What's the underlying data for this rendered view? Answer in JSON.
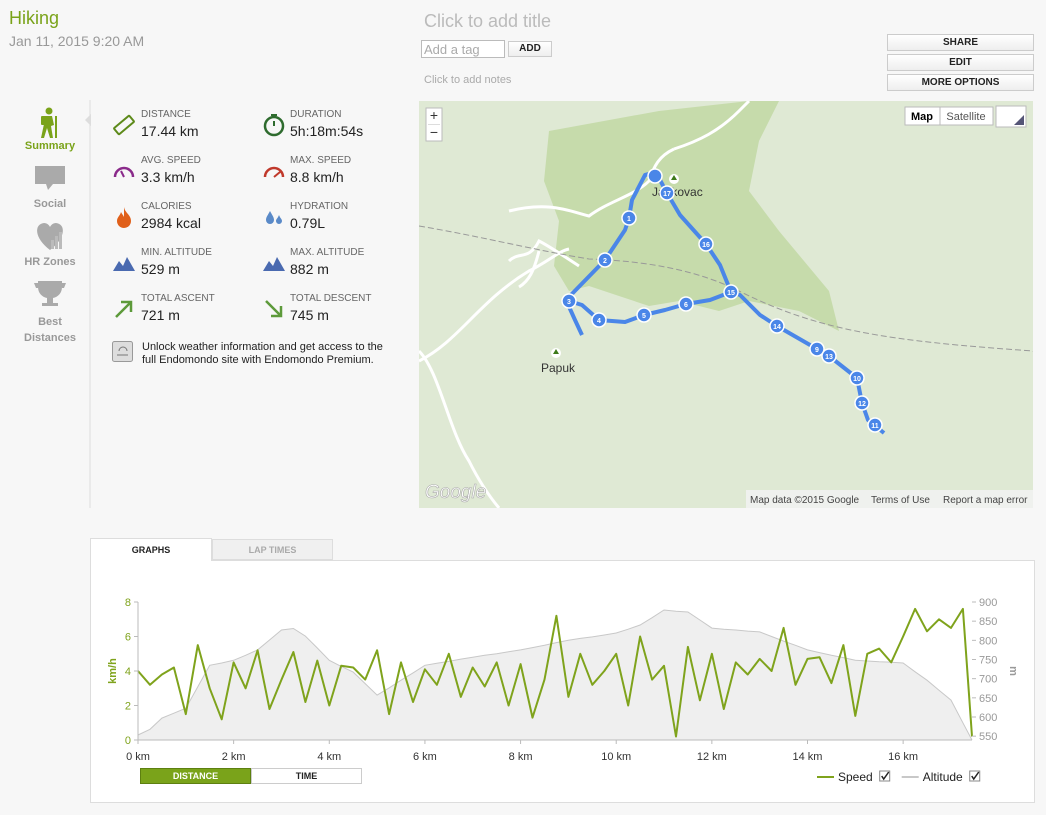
{
  "header": {
    "title": "Hiking",
    "date": "Jan 11, 2015 9:20 AM",
    "add_title": "Click to add title",
    "tag_placeholder": "Add a tag",
    "add_button": "ADD",
    "notes": "Click to add notes"
  },
  "actions": [
    "SHARE",
    "EDIT",
    "MORE OPTIONS"
  ],
  "sidebar": [
    "Summary",
    "Social",
    "HR Zones",
    "Best Distances"
  ],
  "stats": [
    {
      "label": "DISTANCE",
      "value": "17.44 km"
    },
    {
      "label": "DURATION",
      "value": "5h:18m:54s"
    },
    {
      "label": "AVG. SPEED",
      "value": "3.3 km/h"
    },
    {
      "label": "MAX. SPEED",
      "value": "8.8 km/h"
    },
    {
      "label": "CALORIES",
      "value": "2984 kcal"
    },
    {
      "label": "HYDRATION",
      "value": "0.79L"
    },
    {
      "label": "MIN. ALTITUDE",
      "value": "529 m"
    },
    {
      "label": "MAX. ALTITUDE",
      "value": "882 m"
    },
    {
      "label": "TOTAL ASCENT",
      "value": "721 m"
    },
    {
      "label": "TOTAL DESCENT",
      "value": "745 m"
    }
  ],
  "promo": "Unlock weather information and get access to the full Endomondo site with Endomondo Premium.",
  "map": {
    "zoom_in": "+",
    "zoom_out": "−",
    "map_types": [
      "Map",
      "Satellite"
    ],
    "places": [
      "Jankovac",
      "Papuk"
    ],
    "logo": "Google",
    "footer": [
      "Map data ©2015 Google",
      "Terms of Use",
      "Report a map error"
    ],
    "markers": [
      "1",
      "2",
      "3",
      "4",
      "5",
      "6",
      "9",
      "10",
      "11",
      "12",
      "13",
      "14",
      "15",
      "16",
      "17"
    ]
  },
  "tabs": [
    "GRAPHS",
    "LAP TIMES"
  ],
  "toggles": [
    "DISTANCE",
    "TIME"
  ],
  "chart_data": {
    "type": "line",
    "ylabel": "km/h",
    "y2label": "m",
    "x": [
      0,
      0.25,
      0.5,
      0.75,
      1,
      1.25,
      1.5,
      1.75,
      2,
      2.25,
      2.5,
      2.75,
      3,
      3.25,
      3.5,
      3.75,
      4,
      4.25,
      4.5,
      4.75,
      5,
      5.25,
      5.5,
      5.75,
      6,
      6.25,
      6.5,
      6.75,
      7,
      7.25,
      7.5,
      7.75,
      8,
      8.25,
      8.5,
      8.75,
      9,
      9.25,
      9.5,
      9.75,
      10,
      10.25,
      10.5,
      10.75,
      11,
      11.25,
      11.5,
      11.75,
      12,
      12.25,
      12.5,
      12.75,
      13,
      13.25,
      13.5,
      13.75,
      14,
      14.25,
      14.5,
      14.75,
      15,
      15.25,
      15.5,
      15.75,
      16,
      16.25,
      16.5,
      16.75,
      17,
      17.25,
      17.44
    ],
    "series": [
      {
        "name": "Speed",
        "color": "#7fa31c",
        "values": [
          4,
          3.2,
          3.8,
          4.2,
          1.5,
          5.5,
          3.0,
          1.2,
          4.5,
          3.0,
          5.2,
          1.8,
          3.5,
          5.1,
          2.2,
          4.6,
          2.0,
          4.3,
          4.2,
          3.5,
          5.2,
          1.5,
          4.5,
          2.2,
          4.1,
          3.2,
          5.0,
          2.5,
          4.2,
          3.1,
          4.5,
          2.0,
          4.4,
          1.3,
          3.5,
          7.2,
          2.5,
          5.0,
          3.2,
          4.0,
          5.0,
          2.0,
          6.0,
          3.5,
          4.3,
          0.2,
          5.4,
          2.3,
          5.0,
          1.8,
          4.5,
          3.8,
          4.7,
          4.0,
          6.5,
          3.2,
          4.7,
          4.8,
          3.3,
          5.5,
          1.4,
          5.0,
          5.3,
          4.5,
          6.0,
          7.6,
          6.3,
          7.0,
          6.5,
          7.6,
          0.2
        ]
      },
      {
        "name": "Altitude",
        "color": "#c8c8c8",
        "axis": "y2",
        "values": [
          553,
          568,
          597,
          610,
          623,
          679,
          735,
          741,
          748,
          761,
          775,
          801,
          827,
          831,
          811,
          780,
          748,
          732,
          717,
          687,
          657,
          676,
          696,
          715,
          735,
          740,
          745,
          751,
          756,
          761,
          765,
          770,
          775,
          781,
          787,
          794,
          800,
          805,
          809,
          814,
          819,
          829,
          840,
          859,
          879,
          876,
          874,
          853,
          832,
          829,
          827,
          824,
          822,
          810,
          798,
          787,
          775,
          768,
          761,
          755,
          748,
          746,
          744,
          743,
          741,
          718,
          696,
          670,
          644,
          585,
          540
        ]
      }
    ],
    "xlim": [
      0,
      17.44
    ],
    "xticks": [
      {
        "value": 0,
        "label": "0 km"
      },
      {
        "value": 2,
        "label": "2 km"
      },
      {
        "value": 4,
        "label": "4 km"
      },
      {
        "value": 6,
        "label": "6 km"
      },
      {
        "value": 8,
        "label": "8 km"
      },
      {
        "value": 10,
        "label": "10 km"
      },
      {
        "value": 12,
        "label": "12 km"
      },
      {
        "value": 14,
        "label": "14 km"
      },
      {
        "value": 16,
        "label": "16 km"
      }
    ],
    "ylim": [
      0,
      8
    ],
    "yticks": [
      0,
      2,
      4,
      6,
      8
    ],
    "y2lim": [
      540,
      900
    ],
    "y2ticks": [
      550,
      600,
      650,
      700,
      750,
      800,
      850,
      900
    ],
    "legend": "bottom-right"
  }
}
